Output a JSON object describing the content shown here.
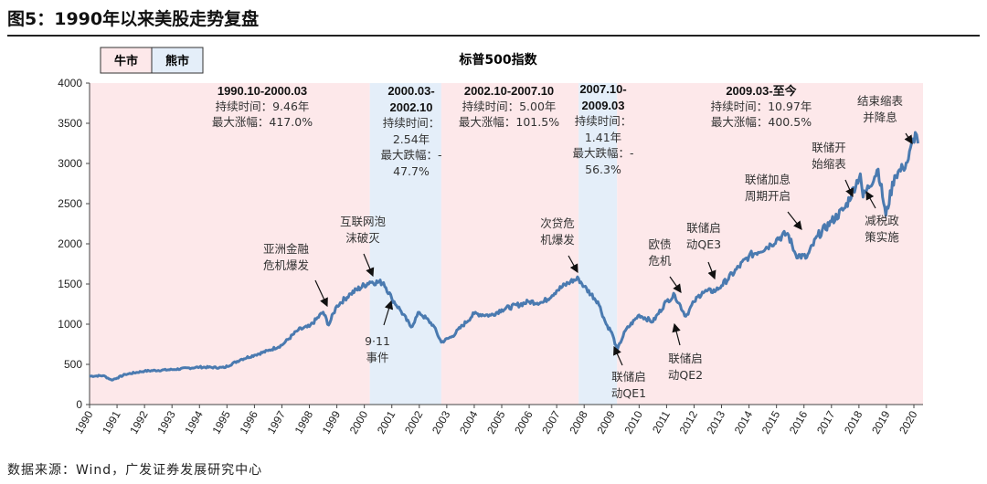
{
  "figure_title": "图5：1990年以来美股走势复盘",
  "source": "数据来源：Wind，广发证券发展研究中心",
  "legend": {
    "bull": "牛市",
    "bear": "熊市",
    "bull_color": "#fde8ea",
    "bear_color": "#e4eef9"
  },
  "chart_data": {
    "type": "line",
    "title": "标普500指数",
    "xlabel": "",
    "ylabel": "",
    "xlim": [
      1990,
      2020.2
    ],
    "ylim": [
      0,
      4000
    ],
    "yticks": [
      "0",
      "500",
      "1000",
      "1500",
      "2000",
      "2500",
      "3000",
      "3500",
      "4000"
    ],
    "xticks": [
      "1990",
      "1991",
      "1992",
      "1993",
      "1994",
      "1995",
      "1996",
      "1997",
      "1998",
      "1999",
      "2000",
      "2001",
      "2002",
      "2003",
      "2004",
      "2005",
      "2006",
      "2007",
      "2008",
      "2009",
      "2010",
      "2011",
      "2012",
      "2013",
      "2014",
      "2015",
      "2016",
      "2017",
      "2018",
      "2019",
      "2020"
    ],
    "line_color": "#4a7ab0",
    "series": [
      {
        "x": [
          1990.0,
          1990.5,
          1990.8,
          1991.0,
          1991.3,
          1992.0,
          1993.0,
          1994.0,
          1994.9,
          1995.5,
          1996.0,
          1996.5,
          1997.0,
          1997.6,
          1998.0,
          1998.5,
          1998.7,
          1999.0,
          1999.5,
          2000.2,
          2000.7,
          2001.0,
          2001.3,
          2001.7,
          2002.0,
          2002.5,
          2002.8,
          2003.2,
          2004.0,
          2004.6,
          2005.0,
          2006.0,
          2006.5,
          2007.0,
          2007.5,
          2007.8,
          2008.0,
          2008.5,
          2008.8,
          2009.0,
          2009.2,
          2009.5,
          2010.0,
          2010.5,
          2011.0,
          2011.3,
          2011.7,
          2012.0,
          2012.3,
          2012.8,
          2013.0,
          2014.0,
          2014.8,
          2015.0,
          2015.4,
          2015.7,
          2016.1,
          2016.5,
          2017.0,
          2017.5,
          2018.05,
          2018.15,
          2018.7,
          2018.98,
          2019.3,
          2019.6,
          2019.8,
          2020.05,
          2020.15
        ],
        "y": [
          353,
          360,
          306,
          330,
          375,
          417,
          435,
          466,
          459,
          560,
          615,
          670,
          740,
          930,
          970,
          1150,
          990,
          1229,
          1380,
          1527,
          1517,
          1320,
          1180,
          965,
          1148,
          990,
          776,
          850,
          1131,
          1110,
          1181,
          1280,
          1270,
          1418,
          1530,
          1565,
          1468,
          1280,
          1000,
          900,
          677,
          920,
          1115,
          1030,
          1286,
          1363,
          1099,
          1278,
          1400,
          1420,
          1480,
          1848,
          1990,
          2058,
          2130,
          1867,
          1829,
          2100,
          2278,
          2450,
          2872,
          2581,
          2930,
          2351,
          2850,
          2941,
          3050,
          3386,
          3250
        ]
      }
    ],
    "periods": [
      {
        "type": "bull",
        "start": 1990.8,
        "end": 2000.2,
        "label": "1990.10-2000.03",
        "duration": "持续时间：9.46年",
        "change": "最大涨幅：417.0%"
      },
      {
        "type": "bear",
        "start": 2000.2,
        "end": 2002.8,
        "label": "2000.03-2002.10",
        "duration": "持续时间：2.54年",
        "change": "最大跌幅：-47.7%"
      },
      {
        "type": "bull",
        "start": 2002.8,
        "end": 2007.8,
        "label": "2002.10-2007.10",
        "duration": "持续时间：5.00年",
        "change": "最大涨幅：101.5%"
      },
      {
        "type": "bear",
        "start": 2007.8,
        "end": 2009.2,
        "label": "2007.10-2009.03",
        "duration": "持续时间：1.41年",
        "change": "最大跌幅：-56.3%"
      },
      {
        "type": "bull",
        "start": 2009.2,
        "end": 2020.2,
        "label": "2009.03-至今",
        "duration": "持续时间：10.97年",
        "change": "最大涨幅：400.5%"
      }
    ],
    "annotations": [
      {
        "text": [
          "亚洲金融",
          "危机爆发"
        ]
      },
      {
        "text": [
          "互联网泡",
          "沫破灭"
        ]
      },
      {
        "text": [
          "9·11",
          "事件"
        ]
      },
      {
        "text": [
          "次贷危",
          "机爆发"
        ]
      },
      {
        "text": [
          "联储启",
          "动QE1"
        ]
      },
      {
        "text": [
          "欧债",
          "危机"
        ]
      },
      {
        "text": [
          "联储启",
          "动QE2"
        ]
      },
      {
        "text": [
          "联储启",
          "动QE3"
        ]
      },
      {
        "text": [
          "联储加息",
          "周期开启"
        ]
      },
      {
        "text": [
          "联储开",
          "始缩表"
        ]
      },
      {
        "text": [
          "减税政",
          "策实施"
        ]
      },
      {
        "text": [
          "结束缩表",
          "并降息"
        ]
      }
    ]
  }
}
